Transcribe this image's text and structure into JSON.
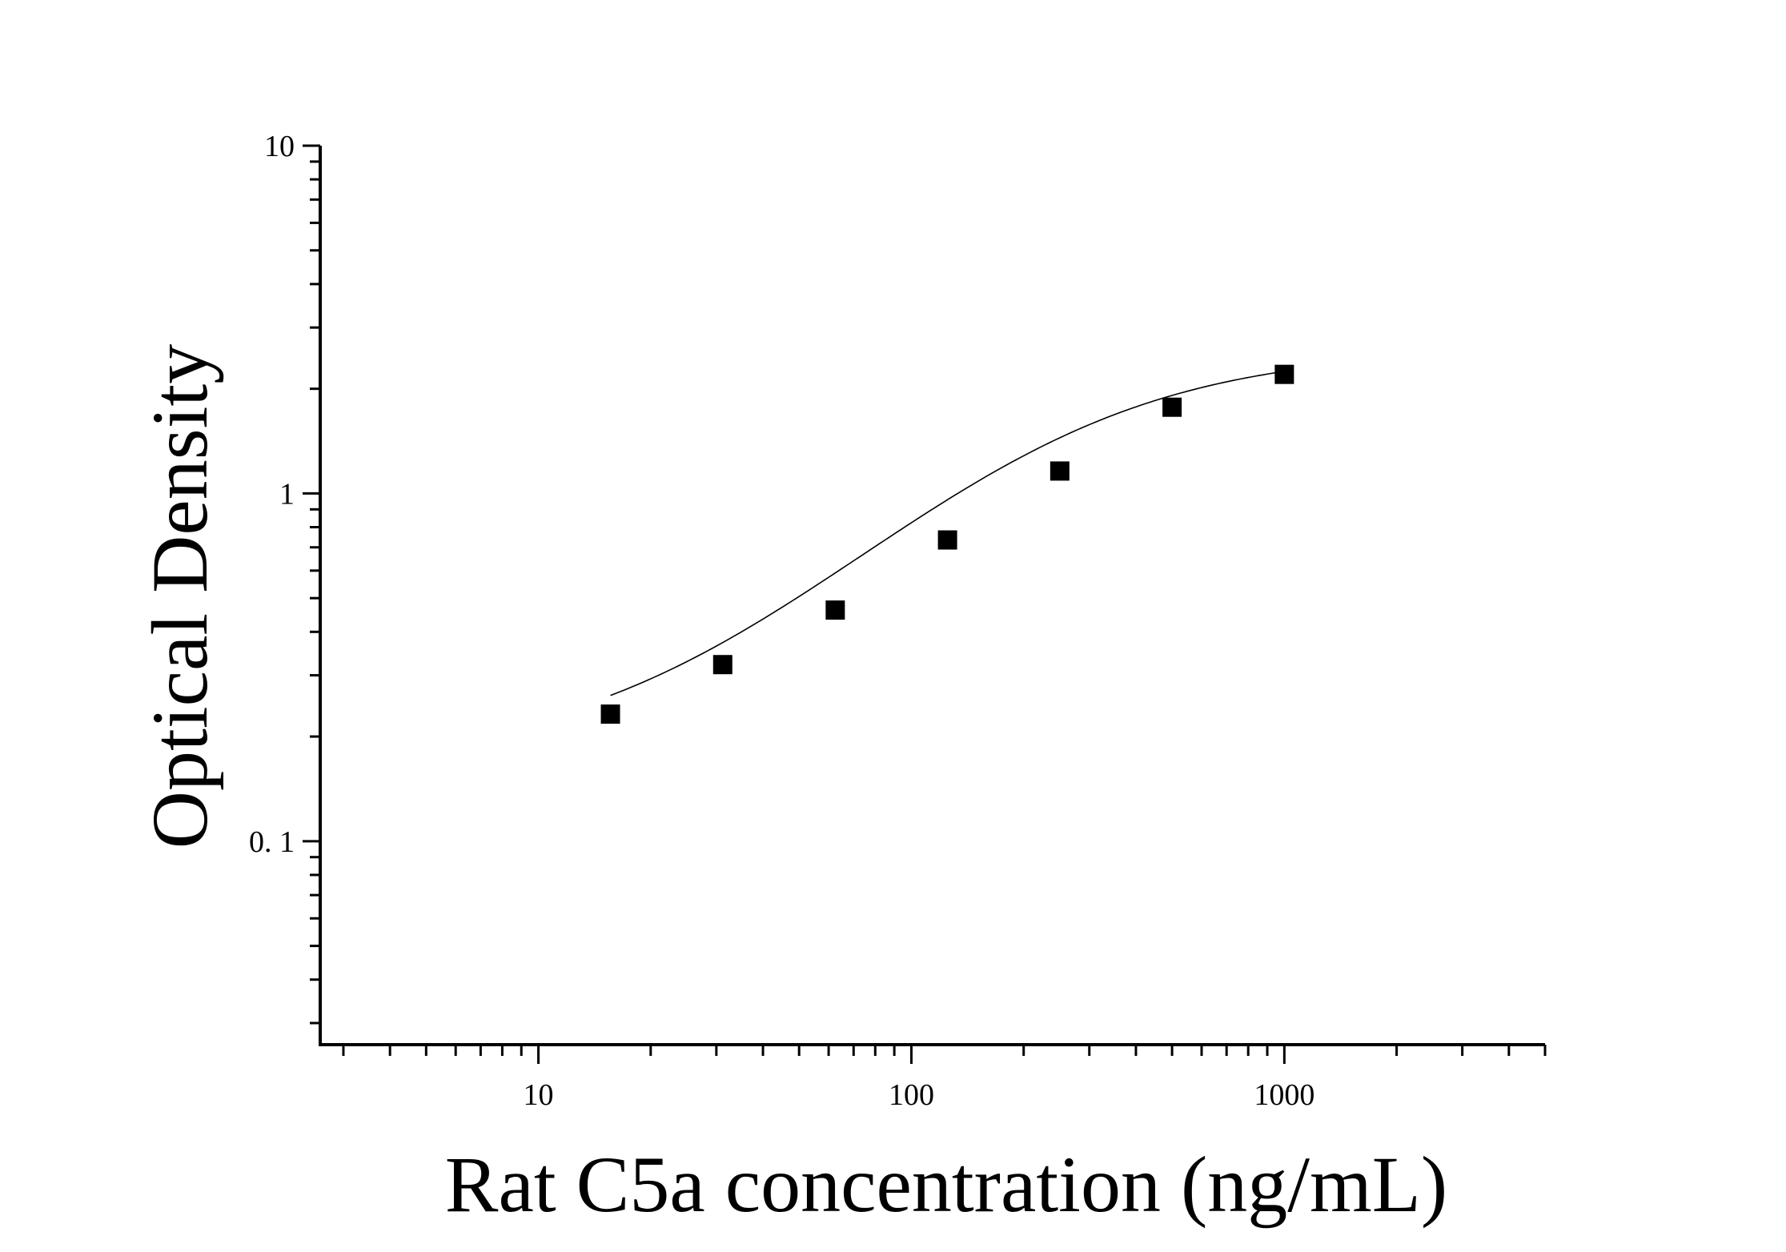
{
  "chart_data": {
    "type": "scatter",
    "title": "",
    "xlabel": "Rat C5a concentration (ng/mL)",
    "ylabel": "Optical Density",
    "x_scale": "log",
    "y_scale": "log",
    "xlim": [
      2.6,
      5000
    ],
    "ylim": [
      0.026,
      10
    ],
    "x_ticks": [
      {
        "value": 10,
        "label": "10"
      },
      {
        "value": 100,
        "label": "100"
      },
      {
        "value": 1000,
        "label": "1000"
      }
    ],
    "y_ticks": [
      {
        "value": 0.1,
        "label": "0. 1"
      },
      {
        "value": 1,
        "label": "1"
      },
      {
        "value": 10,
        "label": "10"
      }
    ],
    "grid": false,
    "legend": "none",
    "marker": "square",
    "marker_color": "#000000",
    "series": [
      {
        "points": [
          {
            "x": 15.6,
            "y": 0.232
          },
          {
            "x": 31.2,
            "y": 0.322
          },
          {
            "x": 62.5,
            "y": 0.462
          },
          {
            "x": 125,
            "y": 0.735
          },
          {
            "x": 250,
            "y": 1.16
          },
          {
            "x": 500,
            "y": 1.77
          },
          {
            "x": 1000,
            "y": 2.2
          }
        ]
      }
    ],
    "fit_curve": {
      "type": "4PL",
      "params": {
        "A": 0.17,
        "B": 1.2,
        "C": 230,
        "D": 2.6
      },
      "x_range": [
        15.6,
        1000
      ]
    }
  }
}
